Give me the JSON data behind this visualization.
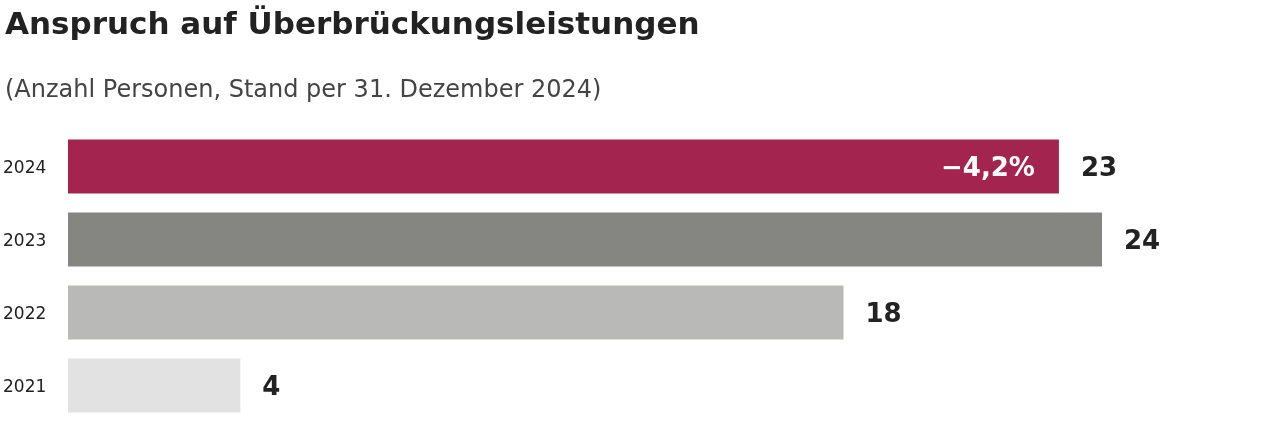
{
  "chart_data": {
    "type": "bar",
    "orientation": "horizontal",
    "title": "Anspruch auf Überbrückungsleistungen",
    "subtitle": "(Anzahl Personen, Stand per 31. Dezember 2024)",
    "categories": [
      "2024",
      "2023",
      "2022",
      "2021"
    ],
    "values": [
      23,
      24,
      18,
      4
    ],
    "colors": [
      "#a3254f",
      "#858581",
      "#b9b9b7",
      "#e2e2e2"
    ],
    "data_labels": true,
    "annotations": [
      {
        "text": "−4,2%",
        "x": 23,
        "y": "2024"
      }
    ]
  }
}
